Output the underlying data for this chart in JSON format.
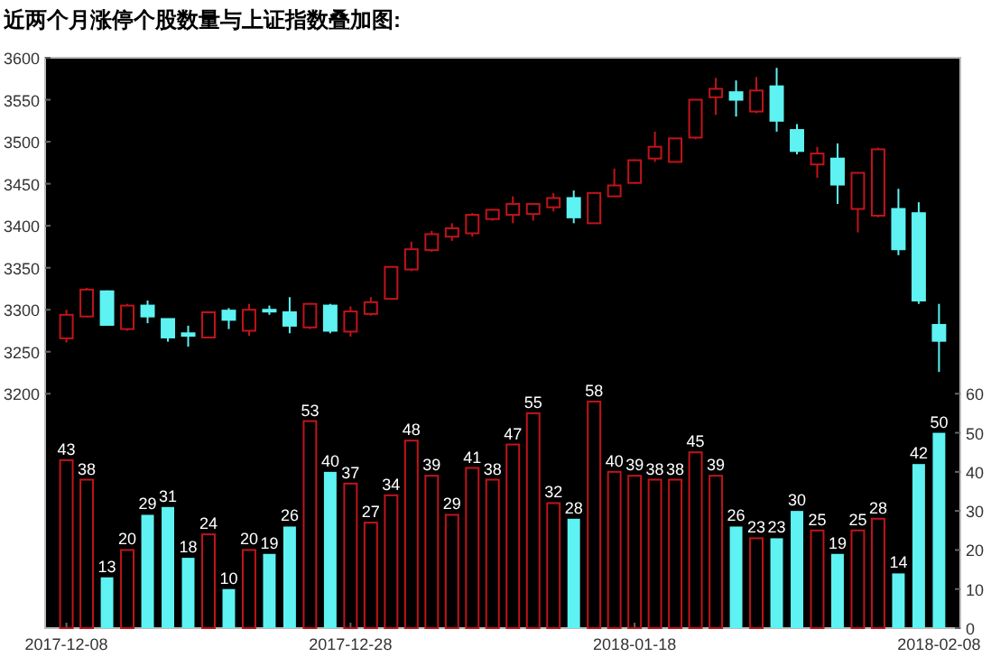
{
  "chart_data": {
    "type": "candlestick",
    "title": "近两个月涨停个股数量与上证指数叠加图:",
    "categories": [
      "2017-12-08",
      null,
      null,
      null,
      null,
      null,
      null,
      null,
      null,
      null,
      null,
      null,
      null,
      null,
      "2017-12-28",
      null,
      null,
      null,
      null,
      null,
      null,
      null,
      null,
      null,
      null,
      null,
      null,
      null,
      "2018-01-18",
      null,
      null,
      null,
      null,
      null,
      null,
      null,
      null,
      null,
      null,
      null,
      null,
      null,
      null,
      "2018-02-08"
    ],
    "ohlc": [
      [
        3266,
        3300,
        3261,
        3294
      ],
      [
        3292,
        3326,
        3291,
        3324
      ],
      [
        3322,
        3323,
        3281,
        3282
      ],
      [
        3277,
        3307,
        3275,
        3305
      ],
      [
        3305,
        3311,
        3284,
        3292
      ],
      [
        3289,
        3289,
        3262,
        3267
      ],
      [
        3272,
        3281,
        3256,
        3269
      ],
      [
        3267,
        3297,
        3266,
        3297
      ],
      [
        3299,
        3302,
        3277,
        3288
      ],
      [
        3275,
        3307,
        3269,
        3300
      ],
      [
        3300,
        3305,
        3294,
        3299
      ],
      [
        3297,
        3315,
        3272,
        3281
      ],
      [
        3279,
        3308,
        3277,
        3307
      ],
      [
        3305,
        3307,
        3272,
        3275
      ],
      [
        3274,
        3304,
        3268,
        3298
      ],
      [
        3295,
        3315,
        3293,
        3309
      ],
      [
        3313,
        3352,
        3313,
        3351
      ],
      [
        3348,
        3381,
        3346,
        3372
      ],
      [
        3371,
        3394,
        3369,
        3390
      ],
      [
        3387,
        3403,
        3382,
        3397
      ],
      [
        3391,
        3415,
        3387,
        3413
      ],
      [
        3408,
        3420,
        3406,
        3419
      ],
      [
        3413,
        3435,
        3403,
        3426
      ],
      [
        3414,
        3427,
        3406,
        3426
      ],
      [
        3422,
        3439,
        3417,
        3433
      ],
      [
        3433,
        3442,
        3403,
        3410
      ],
      [
        3403,
        3440,
        3403,
        3439
      ],
      [
        3435,
        3468,
        3435,
        3448
      ],
      [
        3451,
        3479,
        3450,
        3478
      ],
      [
        3480,
        3512,
        3476,
        3494
      ],
      [
        3476,
        3504,
        3476,
        3504
      ],
      [
        3505,
        3550,
        3503,
        3550
      ],
      [
        3553,
        3576,
        3532,
        3563
      ],
      [
        3559,
        3573,
        3530,
        3550
      ],
      [
        3536,
        3577,
        3534,
        3561
      ],
      [
        3566,
        3588,
        3512,
        3525
      ],
      [
        3514,
        3521,
        3485,
        3489
      ],
      [
        3473,
        3494,
        3457,
        3486
      ],
      [
        3480,
        3498,
        3426,
        3449
      ],
      [
        3420,
        3463,
        3392,
        3463
      ],
      [
        3412,
        3493,
        3410,
        3491
      ],
      [
        3420,
        3444,
        3365,
        3372
      ],
      [
        3415,
        3428,
        3307,
        3311
      ],
      [
        3282,
        3307,
        3226,
        3263
      ]
    ],
    "colors": [
      "#c0141a",
      "#c0141a",
      "#5ef2f2",
      "#c0141a",
      "#5ef2f2",
      "#5ef2f2",
      "#5ef2f2",
      "#c0141a",
      "#5ef2f2",
      "#c0141a",
      "#5ef2f2",
      "#5ef2f2",
      "#c0141a",
      "#5ef2f2",
      "#c0141a",
      "#c0141a",
      "#c0141a",
      "#c0141a",
      "#c0141a",
      "#c0141a",
      "#c0141a",
      "#c0141a",
      "#c0141a",
      "#c0141a",
      "#c0141a",
      "#5ef2f2",
      "#c0141a",
      "#c0141a",
      "#c0141a",
      "#c0141a",
      "#c0141a",
      "#c0141a",
      "#c0141a",
      "#5ef2f2",
      "#c0141a",
      "#5ef2f2",
      "#5ef2f2",
      "#c0141a",
      "#5ef2f2",
      "#c0141a",
      "#c0141a",
      "#5ef2f2",
      "#5ef2f2",
      "#5ef2f2"
    ],
    "ylim": [
      2921,
      3600
    ],
    "yticks": [
      3200,
      3250,
      3300,
      3350,
      3400,
      3450,
      3500,
      3550,
      3600
    ],
    "y2lim": [
      0,
      146
    ],
    "y2ticks": [
      0,
      10,
      20,
      30,
      40,
      50,
      60
    ],
    "series": [
      {
        "type": "bar",
        "axis": "y2",
        "values": [
          43,
          38,
          13,
          20,
          29,
          31,
          18,
          24,
          10,
          20,
          19,
          26,
          53,
          40,
          37,
          27,
          34,
          48,
          39,
          29,
          41,
          38,
          47,
          55,
          32,
          28,
          58,
          40,
          39,
          38,
          38,
          45,
          39,
          26,
          23,
          23,
          30,
          25,
          19,
          25,
          28,
          14,
          42,
          50
        ],
        "colors": [
          "#c0141a",
          "#c0141a",
          "#5ef2f2",
          "#c0141a",
          "#5ef2f2",
          "#5ef2f2",
          "#5ef2f2",
          "#c0141a",
          "#5ef2f2",
          "#c0141a",
          "#5ef2f2",
          "#5ef2f2",
          "#c0141a",
          "#5ef2f2",
          "#c0141a",
          "#c0141a",
          "#c0141a",
          "#c0141a",
          "#c0141a",
          "#c0141a",
          "#c0141a",
          "#c0141a",
          "#c0141a",
          "#c0141a",
          "#c0141a",
          "#5ef2f2",
          "#c0141a",
          "#c0141a",
          "#c0141a",
          "#c0141a",
          "#c0141a",
          "#c0141a",
          "#c0141a",
          "#5ef2f2",
          "#c0141a",
          "#5ef2f2",
          "#5ef2f2",
          "#c0141a",
          "#5ef2f2",
          "#c0141a",
          "#c0141a",
          "#5ef2f2",
          "#5ef2f2",
          "#5ef2f2"
        ]
      }
    ],
    "data_labels": true
  }
}
